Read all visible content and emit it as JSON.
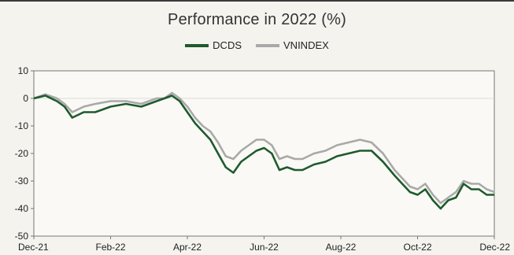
{
  "chart_data": {
    "type": "line",
    "title": "Performance in 2022 (%)",
    "xlabel": "",
    "ylabel": "",
    "ylim": [
      -50,
      10
    ],
    "y_ticks": [
      10,
      0,
      -10,
      -20,
      -30,
      -40,
      -50
    ],
    "x_tick_labels": [
      "Dec-21",
      "Feb-22",
      "Apr-22",
      "Jun-22",
      "Aug-22",
      "Oct-22",
      "Dec-22"
    ],
    "x_range": [
      0,
      12
    ],
    "grid": false,
    "legend_position": "top-center",
    "series": [
      {
        "name": "DCDS",
        "color": "#1e5a2e",
        "points": [
          [
            0,
            0
          ],
          [
            0.3,
            1
          ],
          [
            0.6,
            -1
          ],
          [
            0.8,
            -3
          ],
          [
            1.0,
            -7
          ],
          [
            1.3,
            -5
          ],
          [
            1.6,
            -5
          ],
          [
            2.0,
            -3
          ],
          [
            2.4,
            -2
          ],
          [
            2.8,
            -3
          ],
          [
            3.2,
            -1
          ],
          [
            3.4,
            0
          ],
          [
            3.6,
            1
          ],
          [
            3.8,
            -1
          ],
          [
            4.0,
            -5
          ],
          [
            4.2,
            -9
          ],
          [
            4.4,
            -12
          ],
          [
            4.6,
            -15
          ],
          [
            4.8,
            -20
          ],
          [
            5.0,
            -25
          ],
          [
            5.2,
            -27
          ],
          [
            5.4,
            -23
          ],
          [
            5.6,
            -21
          ],
          [
            5.8,
            -19
          ],
          [
            6.0,
            -18
          ],
          [
            6.2,
            -20
          ],
          [
            6.4,
            -26
          ],
          [
            6.6,
            -25
          ],
          [
            6.8,
            -26
          ],
          [
            7.0,
            -26
          ],
          [
            7.3,
            -24
          ],
          [
            7.6,
            -23
          ],
          [
            7.9,
            -21
          ],
          [
            8.2,
            -20
          ],
          [
            8.5,
            -19
          ],
          [
            8.8,
            -19
          ],
          [
            9.1,
            -23
          ],
          [
            9.4,
            -28
          ],
          [
            9.6,
            -31
          ],
          [
            9.8,
            -34
          ],
          [
            10.0,
            -35
          ],
          [
            10.2,
            -33
          ],
          [
            10.4,
            -37
          ],
          [
            10.6,
            -40
          ],
          [
            10.8,
            -37
          ],
          [
            11.0,
            -36
          ],
          [
            11.2,
            -31
          ],
          [
            11.4,
            -33
          ],
          [
            11.6,
            -33
          ],
          [
            11.8,
            -35
          ],
          [
            12.0,
            -35
          ]
        ]
      },
      {
        "name": "VNINDEX",
        "color": "#a9a9a9",
        "points": [
          [
            0,
            0
          ],
          [
            0.3,
            1.5
          ],
          [
            0.6,
            0
          ],
          [
            0.8,
            -2
          ],
          [
            1.0,
            -5
          ],
          [
            1.3,
            -3
          ],
          [
            1.6,
            -2
          ],
          [
            2.0,
            -1
          ],
          [
            2.4,
            -1
          ],
          [
            2.8,
            -2
          ],
          [
            3.2,
            0
          ],
          [
            3.4,
            0
          ],
          [
            3.6,
            2
          ],
          [
            3.8,
            0
          ],
          [
            4.0,
            -3
          ],
          [
            4.2,
            -7
          ],
          [
            4.4,
            -10
          ],
          [
            4.6,
            -12
          ],
          [
            4.8,
            -16
          ],
          [
            5.0,
            -21
          ],
          [
            5.2,
            -22
          ],
          [
            5.4,
            -19
          ],
          [
            5.6,
            -17
          ],
          [
            5.8,
            -15
          ],
          [
            6.0,
            -15
          ],
          [
            6.2,
            -17
          ],
          [
            6.4,
            -22
          ],
          [
            6.6,
            -21
          ],
          [
            6.8,
            -22
          ],
          [
            7.0,
            -22
          ],
          [
            7.3,
            -20
          ],
          [
            7.6,
            -19
          ],
          [
            7.9,
            -17
          ],
          [
            8.2,
            -16
          ],
          [
            8.5,
            -15
          ],
          [
            8.8,
            -16
          ],
          [
            9.1,
            -20
          ],
          [
            9.4,
            -26
          ],
          [
            9.6,
            -29
          ],
          [
            9.8,
            -32
          ],
          [
            10.0,
            -33
          ],
          [
            10.2,
            -31
          ],
          [
            10.4,
            -35
          ],
          [
            10.6,
            -38
          ],
          [
            10.8,
            -36
          ],
          [
            11.0,
            -34
          ],
          [
            11.2,
            -30
          ],
          [
            11.4,
            -31
          ],
          [
            11.6,
            -31
          ],
          [
            11.8,
            -33
          ],
          [
            12.0,
            -34
          ]
        ]
      }
    ]
  }
}
